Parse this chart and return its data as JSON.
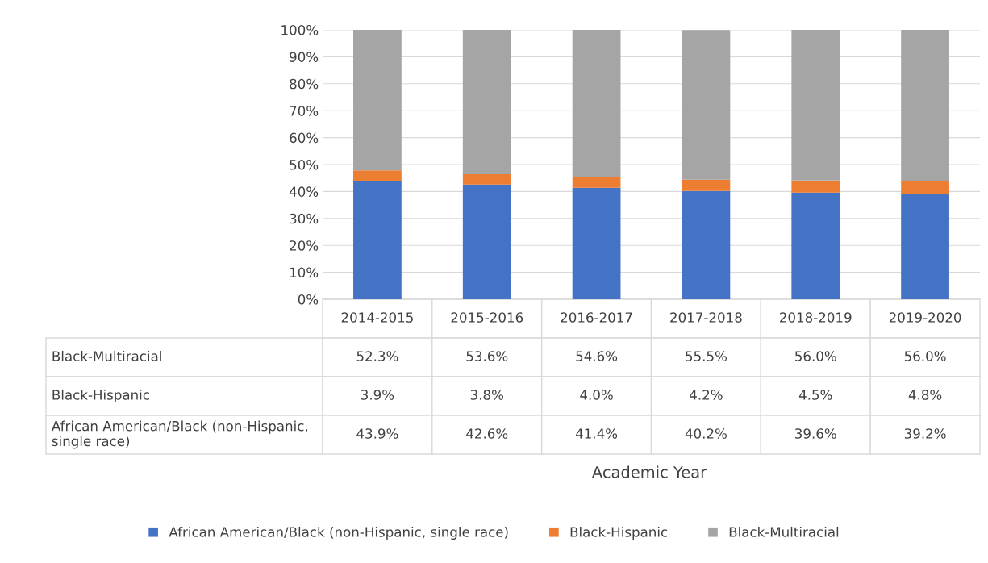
{
  "chart_data": {
    "type": "bar",
    "stacked": true,
    "annotations": [
      "Academic Year"
    ],
    "categories": [
      "2014-2015",
      "2015-2016",
      "2016-2017",
      "2017-2018",
      "2018-2019",
      "2019-2020"
    ],
    "series": [
      {
        "name": "African American/Black (non-Hispanic, single race)",
        "color": "#4472c4",
        "values": [
          43.9,
          42.6,
          41.4,
          40.2,
          39.6,
          39.2
        ],
        "value_labels": [
          "43.9%",
          "42.6%",
          "41.4%",
          "40.2%",
          "39.6%",
          "39.2%"
        ]
      },
      {
        "name": "Black-Hispanic",
        "color": "#ed7d31",
        "values": [
          3.9,
          3.8,
          4.0,
          4.2,
          4.5,
          4.8
        ],
        "value_labels": [
          "3.9%",
          "3.8%",
          "4.0%",
          "4.2%",
          "4.5%",
          "4.8%"
        ]
      },
      {
        "name": "Black-Multiracial",
        "color": "#a5a5a5",
        "values": [
          52.3,
          53.6,
          54.6,
          55.5,
          56.0,
          56.0
        ],
        "value_labels": [
          "52.3%",
          "53.6%",
          "54.6%",
          "55.5%",
          "56.0%",
          "56.0%"
        ]
      }
    ],
    "ylim": [
      0,
      100
    ],
    "yticks": [
      {
        "value": 0,
        "label": "0%"
      },
      {
        "value": 10,
        "label": "10%"
      },
      {
        "value": 20,
        "label": "20%"
      },
      {
        "value": 30,
        "label": "30%"
      },
      {
        "value": 40,
        "label": "40%"
      },
      {
        "value": 50,
        "label": "50%"
      },
      {
        "value": 60,
        "label": "60%"
      },
      {
        "value": 70,
        "label": "70%"
      },
      {
        "value": 80,
        "label": "80%"
      },
      {
        "value": 90,
        "label": "90%"
      },
      {
        "value": 100,
        "label": "100%"
      }
    ],
    "grid": "y",
    "legend": "bottom"
  }
}
